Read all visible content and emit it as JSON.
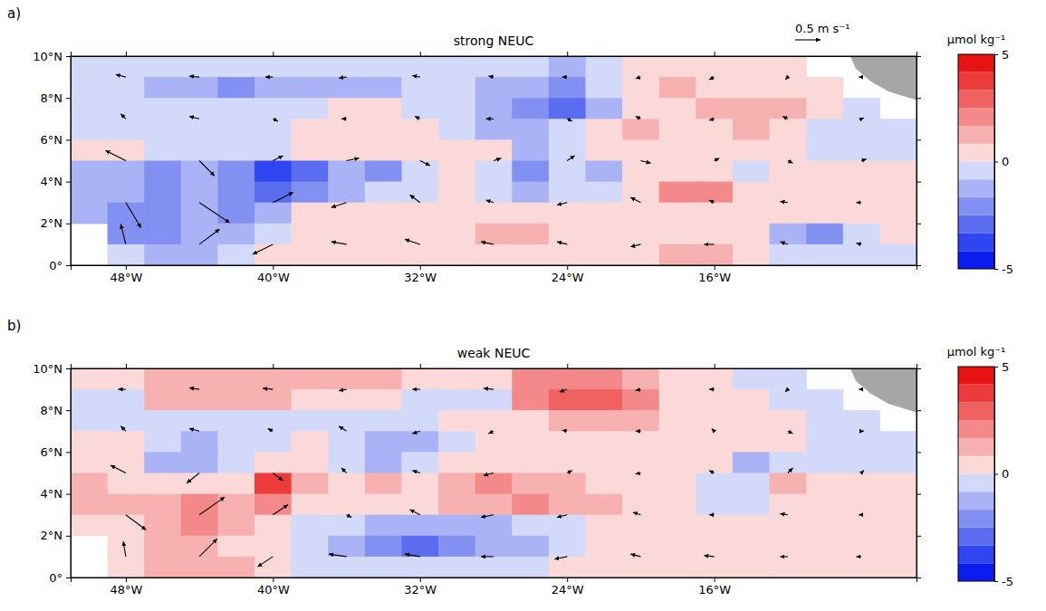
{
  "chart_data": {
    "type": "heatmap",
    "xlim": [
      -51,
      -5
    ],
    "ylim": [
      0,
      10
    ],
    "xticks": [
      {
        "value": -48,
        "label": "48°W"
      },
      {
        "value": -40,
        "label": "40°W"
      },
      {
        "value": -32,
        "label": "32°W"
      },
      {
        "value": -24,
        "label": "24°W"
      },
      {
        "value": -16,
        "label": "16°W"
      }
    ],
    "yticks": [
      {
        "value": 0,
        "label": "0°"
      },
      {
        "value": 2,
        "label": "2°N"
      },
      {
        "value": 4,
        "label": "4°N"
      },
      {
        "value": 6,
        "label": "6°N"
      },
      {
        "value": 8,
        "label": "8°N"
      },
      {
        "value": 10,
        "label": "10°N"
      }
    ],
    "colorbar": {
      "label": "µmol kg⁻¹",
      "range": [
        -5,
        5
      ],
      "ticks": [
        -5,
        0,
        5
      ],
      "levels": [
        -5,
        -4.17,
        -3.33,
        -2.5,
        -1.67,
        -0.83,
        0,
        0.83,
        1.67,
        2.5,
        3.33,
        4.17,
        5
      ],
      "colors": [
        "#0a1cf0",
        "#2f45ef",
        "#5a6cf0",
        "#8290f2",
        "#a9b3f5",
        "#d3d9f8",
        "#fbd9d9",
        "#f8b1b1",
        "#f48989",
        "#f06262",
        "#ec3b3b",
        "#e81414"
      ]
    },
    "scale_arrow": {
      "value": 0.5,
      "label": "0.5 m s⁻¹"
    },
    "land": [
      [
        -8.6,
        10
      ],
      [
        -5,
        10
      ],
      [
        -5,
        7.9
      ],
      [
        -6.5,
        8.3
      ],
      [
        -7.5,
        8.8
      ],
      [
        -8.3,
        9.4
      ]
    ],
    "panels": [
      {
        "label": "a)",
        "title": "strong NEUC",
        "cells": {
          "lon": [
            -50,
            -48,
            -46,
            -44,
            -42,
            -40,
            -38,
            -36,
            -34,
            -32,
            -30,
            -28,
            -26,
            -24,
            -22,
            -20,
            -18,
            -16,
            -14,
            -12,
            -10,
            -8,
            -6
          ],
          "lat": [
            9.5,
            8.5,
            7.5,
            6.5,
            5.5,
            4.5,
            3.5,
            2.5,
            1.5,
            0.5
          ],
          "values": [
            [
              -0.4,
              -0.5,
              -0.5,
              -0.5,
              -0.4,
              -0.5,
              -0.6,
              -0.5,
              -0.5,
              -0.4,
              -0.5,
              -0.6,
              -0.8,
              -1.2,
              -0.5,
              0.3,
              0.8,
              0.5,
              0.4,
              0.3,
              null,
              null,
              null
            ],
            [
              -0.5,
              -0.6,
              -1.0,
              -1.2,
              -1.8,
              -1.6,
              -1.5,
              -1.4,
              -1.3,
              -0.5,
              -0.8,
              -1.0,
              -1.5,
              -1.8,
              -0.8,
              0.4,
              1.5,
              0.6,
              0.4,
              0.5,
              0.3,
              null,
              null
            ],
            [
              -0.4,
              -0.5,
              -0.6,
              -0.5,
              -0.5,
              -0.4,
              -0.3,
              0.2,
              0.3,
              -0.3,
              -0.8,
              -1.6,
              -2.4,
              -2.8,
              -1.5,
              0.5,
              0.8,
              0.9,
              1.2,
              1.0,
              0.4,
              -0.3,
              null
            ],
            [
              -0.3,
              -0.4,
              -0.5,
              -0.4,
              -0.3,
              -0.4,
              0.3,
              0.5,
              0.6,
              0.4,
              -0.4,
              -1.0,
              -1.2,
              -0.8,
              0.5,
              0.9,
              0.8,
              0.6,
              1.0,
              0.5,
              -0.3,
              -0.5,
              -0.4
            ],
            [
              0.5,
              0.6,
              -0.4,
              -0.6,
              -0.5,
              -0.3,
              0.4,
              0.6,
              0.5,
              0.4,
              0.5,
              0.3,
              -1.2,
              -0.6,
              0.4,
              0.6,
              0.5,
              0.4,
              0.3,
              0.2,
              -0.3,
              -0.5,
              -0.6
            ],
            [
              -1.2,
              -1.6,
              -1.8,
              -1.2,
              -2.2,
              -3.6,
              -2.8,
              -1.5,
              -2.2,
              -0.6,
              0.5,
              -0.8,
              -2.2,
              -0.8,
              -1.0,
              0.3,
              0.6,
              0.5,
              -0.6,
              0.3,
              0.4,
              0.3,
              0.2
            ],
            [
              -1.0,
              -1.4,
              -1.8,
              -1.6,
              -2.0,
              -2.8,
              -2.2,
              -1.2,
              -0.8,
              -0.4,
              0.3,
              -0.8,
              -1.2,
              -0.5,
              -0.3,
              0.4,
              2.2,
              2.0,
              0.6,
              0.5,
              0.4,
              0.3,
              0.3
            ],
            [
              -1.6,
              -2.0,
              -1.8,
              -1.5,
              -1.8,
              -1.0,
              0.3,
              0.4,
              0.5,
              0.4,
              0.5,
              0.4,
              0.4,
              0.5,
              0.3,
              0.4,
              0.5,
              0.6,
              0.5,
              0.4,
              0.3,
              0.2,
              0.2
            ],
            [
              null,
              -1.8,
              -2.2,
              -1.6,
              -1.0,
              -0.4,
              0.4,
              0.5,
              0.4,
              0.3,
              0.6,
              1.3,
              1.0,
              0.5,
              0.4,
              0.3,
              0.4,
              0.5,
              0.3,
              -1.4,
              -1.8,
              -0.5,
              0.2
            ],
            [
              null,
              -0.8,
              -1.2,
              -1.0,
              -0.5,
              0.3,
              0.4,
              0.5,
              0.6,
              0.5,
              0.4,
              0.3,
              0.5,
              0.4,
              0.5,
              0.8,
              1.6,
              1.5,
              0.6,
              -0.5,
              -0.6,
              -0.4,
              -0.3
            ]
          ]
        },
        "vectors": {
          "lon": [
            -48,
            -44,
            -40,
            -36,
            -32,
            -28,
            -24,
            -20,
            -16,
            -12,
            -8
          ],
          "lat": [
            9,
            7,
            5,
            3,
            1
          ],
          "u": [
            [
              -0.2,
              -0.2,
              -0.15,
              -0.15,
              -0.15,
              -0.1,
              -0.1,
              -0.1,
              -0.1,
              -0.05,
              -0.05
            ],
            [
              -0.1,
              -0.2,
              0.1,
              -0.1,
              -0.1,
              -0.15,
              0.1,
              -0.1,
              -0.1,
              -0.1,
              0.05
            ],
            [
              -0.4,
              0.3,
              0.2,
              0.25,
              0.2,
              0.15,
              0.15,
              0.2,
              0.1,
              0.1,
              0.1
            ],
            [
              0.3,
              0.6,
              0.4,
              -0.3,
              -0.2,
              -0.15,
              -0.2,
              -0.2,
              -0.1,
              -0.15,
              -0.1
            ],
            [
              -0.1,
              0.4,
              -0.4,
              -0.3,
              -0.3,
              -0.25,
              -0.2,
              -0.2,
              -0.2,
              -0.15,
              -0.1
            ]
          ],
          "v": [
            [
              0.05,
              0.02,
              0.0,
              -0.02,
              0.03,
              0.02,
              0.0,
              -0.03,
              -0.05,
              -0.05,
              0.0
            ],
            [
              0.1,
              0.05,
              -0.05,
              0.0,
              0.05,
              0.0,
              -0.05,
              0.05,
              -0.03,
              0.05,
              0.02
            ],
            [
              0.2,
              -0.3,
              0.1,
              0.05,
              -0.1,
              0.05,
              0.1,
              -0.05,
              0.05,
              -0.05,
              0.03
            ],
            [
              -0.5,
              -0.4,
              0.2,
              -0.1,
              0.15,
              0.05,
              -0.05,
              0.1,
              0.05,
              0.02,
              0.0
            ],
            [
              0.4,
              0.3,
              -0.2,
              0.05,
              0.1,
              0.05,
              0.05,
              -0.05,
              0.0,
              0.05,
              0.02
            ]
          ]
        }
      },
      {
        "label": "b)",
        "title": "weak NEUC",
        "cells": {
          "lon": [
            -50,
            -48,
            -46,
            -44,
            -42,
            -40,
            -38,
            -36,
            -34,
            -32,
            -30,
            -28,
            -26,
            -24,
            -22,
            -20,
            -18,
            -16,
            -14,
            -12,
            -10,
            -8,
            -6
          ],
          "lat": [
            9.5,
            8.5,
            7.5,
            6.5,
            5.5,
            4.5,
            3.5,
            2.5,
            1.5,
            0.5
          ],
          "values": [
            [
              0.4,
              0.6,
              1.2,
              1.4,
              1.5,
              1.4,
              1.3,
              1.2,
              1.0,
              0.4,
              0.5,
              0.6,
              1.8,
              2.4,
              2.2,
              1.0,
              0.6,
              0.4,
              -0.3,
              -0.4,
              null,
              null,
              null
            ],
            [
              -0.4,
              -0.3,
              1.0,
              1.2,
              1.1,
              1.0,
              0.8,
              0.6,
              0.5,
              -0.3,
              -0.4,
              -0.2,
              2.0,
              2.8,
              2.6,
              1.8,
              0.6,
              0.5,
              0.4,
              -0.5,
              -0.6,
              null,
              null
            ],
            [
              -0.5,
              -0.4,
              -0.3,
              -0.4,
              -0.3,
              -0.4,
              -0.5,
              -0.4,
              -0.5,
              -0.3,
              0.3,
              0.4,
              0.8,
              1.2,
              1.5,
              1.0,
              0.5,
              0.6,
              0.5,
              0.3,
              -0.3,
              -0.4,
              null
            ],
            [
              0.5,
              0.3,
              -0.8,
              -1.0,
              -0.6,
              -0.3,
              0.3,
              -0.8,
              -1.6,
              -1.4,
              -0.5,
              0.4,
              0.6,
              0.7,
              0.8,
              0.6,
              0.5,
              0.4,
              0.3,
              0.2,
              -0.3,
              -0.4,
              -0.3
            ],
            [
              0.8,
              0.7,
              -0.9,
              -1.0,
              -0.5,
              0.3,
              0.5,
              -0.4,
              -1.5,
              -0.6,
              0.3,
              0.4,
              0.6,
              0.5,
              0.5,
              0.6,
              0.4,
              0.2,
              -1.4,
              -0.5,
              -0.3,
              -0.3,
              -0.2
            ],
            [
              1.2,
              0.8,
              0.4,
              0.3,
              0.5,
              3.6,
              1.6,
              0.6,
              1.2,
              0.6,
              1.6,
              1.8,
              1.6,
              1.5,
              0.8,
              0.4,
              0.3,
              -0.4,
              -0.5,
              1.2,
              0.4,
              0.2,
              0.2
            ],
            [
              1.0,
              1.2,
              1.5,
              1.8,
              1.6,
              1.8,
              0.6,
              0.5,
              0.6,
              0.4,
              1.5,
              1.6,
              1.8,
              1.4,
              1.0,
              0.4,
              0.3,
              -0.3,
              -0.4,
              0.5,
              0.3,
              0.2,
              0.2
            ],
            [
              0.5,
              0.8,
              1.6,
              2.0,
              1.2,
              0.4,
              -0.3,
              -0.5,
              -0.9,
              -1.2,
              -1.0,
              -1.0,
              -0.8,
              -0.5,
              0.3,
              0.3,
              0.4,
              0.3,
              0.3,
              0.2,
              0.2,
              0.3,
              0.2
            ],
            [
              null,
              0.8,
              1.2,
              1.5,
              0.8,
              0.3,
              -0.3,
              -1.6,
              -2.4,
              -2.6,
              -2.0,
              -1.4,
              -1.2,
              -0.4,
              0.3,
              0.3,
              0.4,
              0.3,
              0.3,
              0.2,
              0.3,
              0.3,
              0.2
            ],
            [
              null,
              0.5,
              1.2,
              1.6,
              1.0,
              0.4,
              -0.3,
              -0.4,
              -0.3,
              -0.4,
              -0.3,
              -0.4,
              -0.3,
              0.3,
              0.3,
              0.4,
              0.3,
              0.3,
              0.3,
              0.2,
              0.3,
              0.2,
              0.2
            ]
          ]
        },
        "vectors": {
          "lon": [
            -48,
            -44,
            -40,
            -36,
            -32,
            -28,
            -24,
            -20,
            -16,
            -12,
            -8
          ],
          "lat": [
            9,
            7,
            5,
            3,
            1
          ],
          "u": [
            [
              -0.15,
              -0.2,
              -0.2,
              -0.15,
              -0.15,
              -0.2,
              -0.15,
              -0.1,
              -0.1,
              -0.05,
              -0.05
            ],
            [
              -0.1,
              -0.2,
              -0.1,
              -0.15,
              -0.15,
              -0.1,
              -0.1,
              -0.1,
              -0.05,
              0.1,
              0.05
            ],
            [
              -0.3,
              -0.25,
              0.2,
              -0.1,
              -0.15,
              -0.2,
              0.1,
              -0.1,
              -0.1,
              0.1,
              0.05
            ],
            [
              0.4,
              0.5,
              0.3,
              0.1,
              -0.2,
              -0.25,
              -0.2,
              -0.15,
              -0.1,
              -0.15,
              -0.05
            ],
            [
              -0.05,
              0.35,
              -0.3,
              -0.35,
              -0.3,
              -0.25,
              -0.25,
              -0.2,
              -0.2,
              -0.15,
              -0.1
            ]
          ],
          "v": [
            [
              0.0,
              0.03,
              0.02,
              -0.03,
              0.0,
              0.02,
              -0.05,
              -0.02,
              0.0,
              -0.05,
              0.0
            ],
            [
              0.1,
              0.05,
              0.05,
              0.1,
              -0.05,
              -0.05,
              0.02,
              0.0,
              0.05,
              -0.05,
              0.0
            ],
            [
              0.15,
              -0.2,
              -0.15,
              0.1,
              0.05,
              -0.05,
              0.05,
              -0.02,
              0.05,
              0.1,
              0.05
            ],
            [
              -0.3,
              0.35,
              0.2,
              -0.05,
              0.1,
              -0.05,
              -0.05,
              0.05,
              0.0,
              0.02,
              0.0
            ],
            [
              0.3,
              0.35,
              -0.2,
              0.05,
              0.05,
              0.0,
              -0.05,
              0.05,
              0.02,
              0.0,
              0.0
            ]
          ]
        }
      }
    ]
  }
}
